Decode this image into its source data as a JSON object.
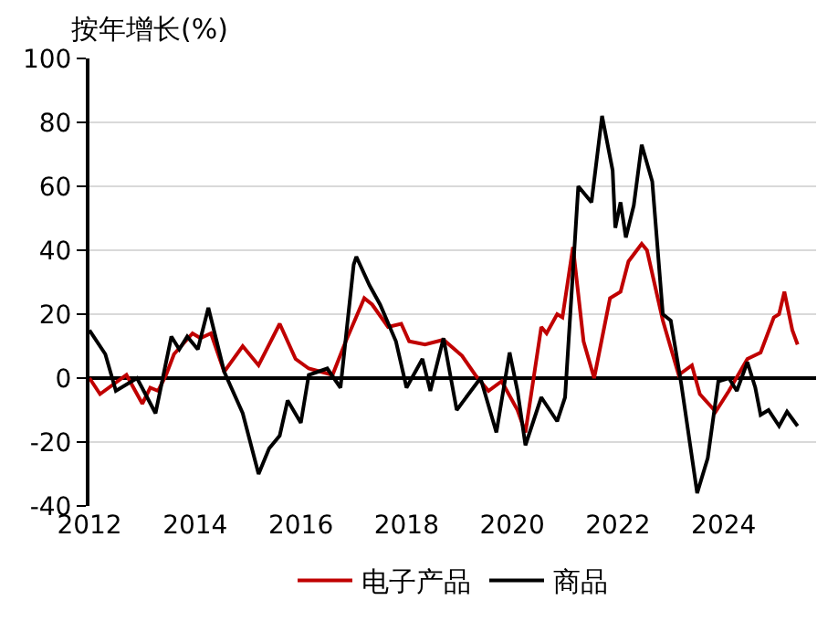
{
  "chart_data": {
    "type": "line",
    "ylabel": "按年增长(%)",
    "xlim": [
      2012,
      2025.75
    ],
    "xticks": [
      2012,
      2014,
      2016,
      2018,
      2020,
      2022,
      2024
    ],
    "ylim": [
      -40,
      100
    ],
    "yticks": [
      -40,
      -20,
      0,
      20,
      40,
      60,
      80,
      100
    ],
    "grid": "y",
    "legend": "bottom",
    "marker": "none",
    "line_style": "solid",
    "series": [
      {
        "name": "电子产品",
        "color": "#c00000",
        "x": [
          2012.0,
          2012.2,
          2012.7,
          2013.0,
          2013.15,
          2013.3,
          2013.45,
          2013.6,
          2013.95,
          2014.1,
          2014.3,
          2014.55,
          2014.9,
          2015.2,
          2015.6,
          2015.9,
          2016.15,
          2016.6,
          2016.85,
          2017.2,
          2017.35,
          2017.65,
          2017.9,
          2018.05,
          2018.35,
          2018.7,
          2019.05,
          2019.3,
          2019.55,
          2019.8,
          2020.1,
          2020.25,
          2020.55,
          2020.65,
          2020.85,
          2020.95,
          2021.15,
          2021.35,
          2021.55,
          2021.85,
          2022.05,
          2022.2,
          2022.45,
          2022.55,
          2022.85,
          2023.15,
          2023.4,
          2023.55,
          2023.85,
          2024.1,
          2024.45,
          2024.7,
          2024.95,
          2025.05,
          2025.15,
          2025.3,
          2025.4
        ],
        "values": [
          0,
          -5,
          1,
          -8,
          -3,
          -4,
          1,
          7.5,
          14,
          12.5,
          14,
          2,
          10,
          4,
          17,
          6,
          3,
          1,
          11.5,
          25,
          23,
          16,
          17,
          11.5,
          10.5,
          12,
          7,
          1,
          -4,
          -1,
          -10,
          -17,
          16,
          14,
          20,
          19,
          41,
          11.5,
          0,
          25,
          27,
          36.5,
          42,
          40,
          18,
          1,
          4,
          -5,
          -10.5,
          -4,
          6,
          8,
          19,
          20,
          27,
          15,
          10.5
        ]
      },
      {
        "name": "商品",
        "color": "#000000",
        "x": [
          2012.0,
          2012.3,
          2012.5,
          2012.9,
          2013.25,
          2013.55,
          2013.7,
          2013.85,
          2014.05,
          2014.25,
          2014.55,
          2014.9,
          2015.2,
          2015.4,
          2015.6,
          2015.75,
          2016.0,
          2016.15,
          2016.5,
          2016.75,
          2017.0,
          2017.05,
          2017.3,
          2017.5,
          2017.8,
          2018.0,
          2018.3,
          2018.45,
          2018.7,
          2018.95,
          2019.4,
          2019.7,
          2019.95,
          2020.1,
          2020.25,
          2020.55,
          2020.85,
          2021.0,
          2021.25,
          2021.5,
          2021.7,
          2021.9,
          2021.95,
          2022.05,
          2022.15,
          2022.3,
          2022.45,
          2022.65,
          2022.85,
          2023.0,
          2023.2,
          2023.5,
          2023.7,
          2023.9,
          2024.1,
          2024.25,
          2024.45,
          2024.6,
          2024.7,
          2024.85,
          2025.05,
          2025.2,
          2025.4
        ],
        "values": [
          15,
          7.5,
          -4,
          0,
          -11,
          13,
          9,
          13,
          9,
          22,
          2,
          -11,
          -30,
          -22,
          -18,
          -7,
          -14,
          1,
          3,
          -3,
          35.5,
          38,
          29,
          23,
          11.5,
          -3,
          6,
          -4,
          12.5,
          -10,
          0,
          -17,
          8,
          -4,
          -21,
          -6,
          -13.5,
          -6,
          60,
          55,
          82,
          65,
          47,
          55,
          44,
          54,
          73,
          61.5,
          20,
          18,
          -2,
          -36,
          -25,
          -1,
          0,
          -4,
          5,
          -3,
          -11.5,
          -10,
          -15,
          -10.5,
          -15
        ]
      }
    ]
  }
}
